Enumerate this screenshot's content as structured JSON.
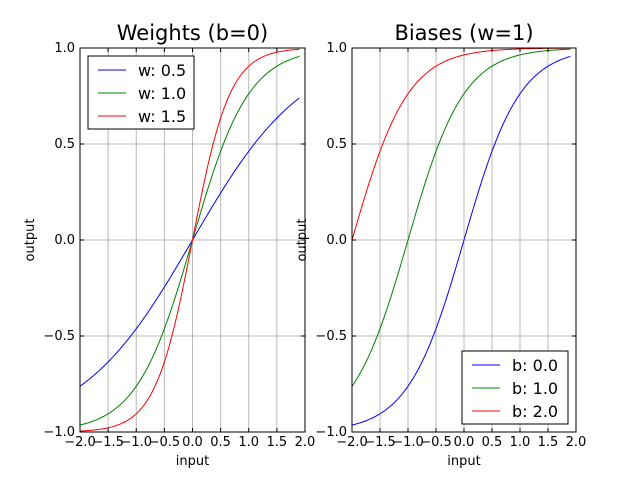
{
  "chart_data": [
    {
      "type": "line",
      "title": "Weights (b=0)",
      "xlabel": "input",
      "ylabel": "output",
      "xlim": [
        -2.0,
        2.0
      ],
      "ylim": [
        -1.0,
        1.0
      ],
      "xticks": [
        -2.0,
        -1.5,
        -1.0,
        -0.5,
        0.0,
        0.5,
        1.0,
        1.5,
        2.0
      ],
      "xtick_labels": [
        "−2.0",
        "−1.5",
        "−1.0",
        "−0.5",
        "0.0",
        "0.5",
        "1.0",
        "1.5",
        "2.0"
      ],
      "yticks": [
        -1.0,
        -0.5,
        0.0,
        0.5,
        1.0
      ],
      "ytick_labels": [
        "−1.0",
        "−0.5",
        "0.0",
        "0.5",
        "1.0"
      ],
      "grid": true,
      "legend_position": "upper left",
      "x": [
        -2.0,
        -1.5,
        -1.0,
        -0.5,
        0.0,
        0.5,
        1.0,
        1.5,
        1.9
      ],
      "series": [
        {
          "name": "w: 0.5",
          "color": "#0000ff",
          "values": [
            -0.76,
            -0.64,
            -0.46,
            -0.24,
            0.0,
            0.24,
            0.46,
            0.64,
            0.74
          ]
        },
        {
          "name": "w: 1.0",
          "color": "#008000",
          "values": [
            -0.96,
            -0.91,
            -0.76,
            -0.46,
            0.0,
            0.46,
            0.76,
            0.91,
            0.96
          ]
        },
        {
          "name": "w: 1.5",
          "color": "#ff0000",
          "values": [
            -0.995,
            -0.98,
            -0.91,
            -0.64,
            0.0,
            0.64,
            0.91,
            0.98,
            0.99
          ]
        }
      ]
    },
    {
      "type": "line",
      "title": "Biases (w=1)",
      "xlabel": "input",
      "ylabel": "output",
      "xlim": [
        -2.0,
        2.0
      ],
      "ylim": [
        -1.0,
        1.0
      ],
      "xticks": [
        -2.0,
        -1.5,
        -1.0,
        -0.5,
        0.0,
        0.5,
        1.0,
        1.5,
        2.0
      ],
      "xtick_labels": [
        "−2.0",
        "−1.5",
        "−1.0",
        "−0.5",
        "0.0",
        "0.5",
        "1.0",
        "1.5",
        "2.0"
      ],
      "yticks": [
        -1.0,
        -0.5,
        0.0,
        0.5,
        1.0
      ],
      "ytick_labels": [
        "−1.0",
        "−0.5",
        "0.0",
        "0.5",
        "1.0"
      ],
      "grid": true,
      "legend_position": "lower right",
      "x": [
        -2.0,
        -1.5,
        -1.0,
        -0.5,
        0.0,
        0.5,
        1.0,
        1.5,
        1.9
      ],
      "series": [
        {
          "name": "b: 0.0",
          "color": "#0000ff",
          "values": [
            -0.96,
            -0.91,
            -0.76,
            -0.46,
            0.0,
            0.46,
            0.76,
            0.91,
            0.96
          ]
        },
        {
          "name": "b: 1.0",
          "color": "#008000",
          "values": [
            -0.76,
            -0.46,
            0.0,
            0.46,
            0.76,
            0.91,
            0.96,
            0.99,
            0.995
          ]
        },
        {
          "name": "b: 2.0",
          "color": "#ff0000",
          "values": [
            0.0,
            0.46,
            0.76,
            0.91,
            0.96,
            0.99,
            0.995,
            0.999,
            0.9995
          ]
        }
      ]
    }
  ]
}
